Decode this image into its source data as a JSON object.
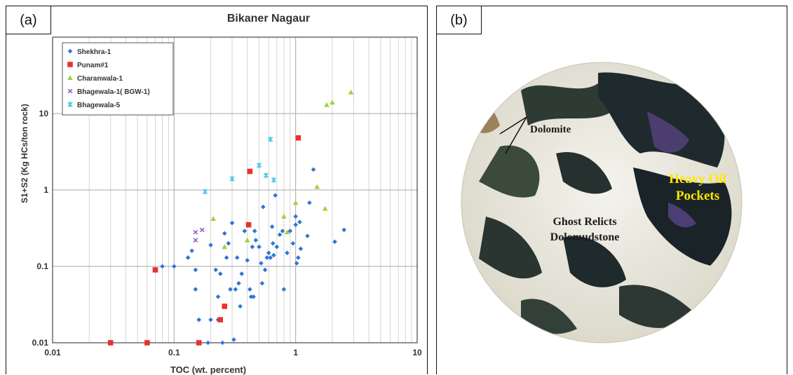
{
  "panel_a": {
    "label": "(a)"
  },
  "panel_b": {
    "label": "(b)",
    "annotations": {
      "dolomite": "Dolomite",
      "heavy_oil_1": "Heavy Oil",
      "heavy_oil_2": "Pockets",
      "ghost_1": "Ghost Relicts",
      "ghost_2": "Dolomudstone"
    },
    "colors": {
      "heavy_oil_text": "#ffe600",
      "label_text": "#1a1a1a"
    }
  },
  "chart_data": {
    "type": "scatter",
    "title": "Bikaner Nagaur",
    "xlabel": "TOC (wt. percent)",
    "ylabel": "S1+S2 (Kg HCs/ton rock)",
    "x_scale": "log",
    "y_scale": "log",
    "xlim": [
      0.01,
      10
    ],
    "ylim": [
      0.01,
      100
    ],
    "x_ticks": [
      {
        "value": 0.01,
        "label": "0.01"
      },
      {
        "value": 0.1,
        "label": "0.1"
      },
      {
        "value": 1,
        "label": "1"
      },
      {
        "value": 10,
        "label": "10"
      }
    ],
    "y_ticks": [
      {
        "value": 0.01,
        "label": "0.01"
      },
      {
        "value": 0.1,
        "label": "0.1"
      },
      {
        "value": 1,
        "label": "1"
      },
      {
        "value": 10,
        "label": "10"
      }
    ],
    "grid": true,
    "legend": "top-left",
    "series": [
      {
        "name": "Shekhra-1",
        "marker": "diamond",
        "color": "#2e75d6",
        "points": [
          [
            0.08,
            0.1
          ],
          [
            0.1,
            0.1
          ],
          [
            0.13,
            0.13
          ],
          [
            0.14,
            0.16
          ],
          [
            0.15,
            0.09
          ],
          [
            0.15,
            0.05
          ],
          [
            0.16,
            0.02
          ],
          [
            0.19,
            0.01
          ],
          [
            0.2,
            0.02
          ],
          [
            0.2,
            0.19
          ],
          [
            0.22,
            0.09
          ],
          [
            0.23,
            0.02
          ],
          [
            0.23,
            0.04
          ],
          [
            0.24,
            0.08
          ],
          [
            0.25,
            0.01
          ],
          [
            0.26,
            0.27
          ],
          [
            0.27,
            0.13
          ],
          [
            0.28,
            0.2
          ],
          [
            0.29,
            0.05
          ],
          [
            0.3,
            0.37
          ],
          [
            0.31,
            0.011
          ],
          [
            0.32,
            0.05
          ],
          [
            0.33,
            0.13
          ],
          [
            0.34,
            0.06
          ],
          [
            0.35,
            0.03
          ],
          [
            0.36,
            0.08
          ],
          [
            0.38,
            0.29
          ],
          [
            0.4,
            0.12
          ],
          [
            0.42,
            0.05
          ],
          [
            0.43,
            0.04
          ],
          [
            0.44,
            0.18
          ],
          [
            0.45,
            0.04
          ],
          [
            0.46,
            0.29
          ],
          [
            0.47,
            0.22
          ],
          [
            0.5,
            0.18
          ],
          [
            0.52,
            0.11
          ],
          [
            0.53,
            0.06
          ],
          [
            0.54,
            0.6
          ],
          [
            0.56,
            0.09
          ],
          [
            0.58,
            0.13
          ],
          [
            0.6,
            0.15
          ],
          [
            0.62,
            0.13
          ],
          [
            0.64,
            0.33
          ],
          [
            0.65,
            0.2
          ],
          [
            0.66,
            0.14
          ],
          [
            0.68,
            0.85
          ],
          [
            0.7,
            0.18
          ],
          [
            0.74,
            0.26
          ],
          [
            0.78,
            0.29
          ],
          [
            0.8,
            0.05
          ],
          [
            0.85,
            0.15
          ],
          [
            0.9,
            0.29
          ],
          [
            0.95,
            0.2
          ],
          [
            1.0,
            0.35
          ],
          [
            1.0,
            0.45
          ],
          [
            1.02,
            0.11
          ],
          [
            1.05,
            0.13
          ],
          [
            1.08,
            0.38
          ],
          [
            1.1,
            0.17
          ],
          [
            1.25,
            0.25
          ],
          [
            1.3,
            0.68
          ],
          [
            1.4,
            1.85
          ],
          [
            2.1,
            0.21
          ],
          [
            2.5,
            0.3
          ]
        ]
      },
      {
        "name": "Punam#1",
        "marker": "square",
        "color": "#e8322d",
        "points": [
          [
            0.03,
            0.01
          ],
          [
            0.06,
            0.01
          ],
          [
            0.07,
            0.09
          ],
          [
            0.16,
            0.01
          ],
          [
            0.24,
            0.02
          ],
          [
            0.26,
            0.03
          ],
          [
            0.41,
            0.35
          ],
          [
            0.42,
            1.75
          ],
          [
            1.05,
            4.8
          ]
        ]
      },
      {
        "name": "Charanwala-1",
        "marker": "triangle",
        "color": "#9bd23c",
        "points": [
          [
            0.21,
            0.42
          ],
          [
            0.26,
            0.18
          ],
          [
            0.4,
            0.22
          ],
          [
            0.8,
            0.45
          ],
          [
            0.85,
            0.28
          ],
          [
            1.0,
            0.68
          ],
          [
            1.5,
            1.1
          ],
          [
            1.75,
            0.57
          ],
          [
            1.8,
            13
          ],
          [
            2.0,
            14
          ],
          [
            2.85,
            19
          ]
        ]
      },
      {
        "name": "Bhagewala-1( BGW-1)",
        "marker": "x",
        "color": "#8b46c9",
        "points": [
          [
            0.15,
            0.22
          ],
          [
            0.15,
            0.28
          ],
          [
            0.17,
            0.3
          ]
        ]
      },
      {
        "name": "Bhagewala-5",
        "marker": "star",
        "color": "#47c6e8",
        "points": [
          [
            0.18,
            0.95
          ],
          [
            0.3,
            1.4
          ],
          [
            0.5,
            2.1
          ],
          [
            0.57,
            1.55
          ],
          [
            0.62,
            4.6
          ],
          [
            0.66,
            1.35
          ]
        ]
      }
    ]
  }
}
